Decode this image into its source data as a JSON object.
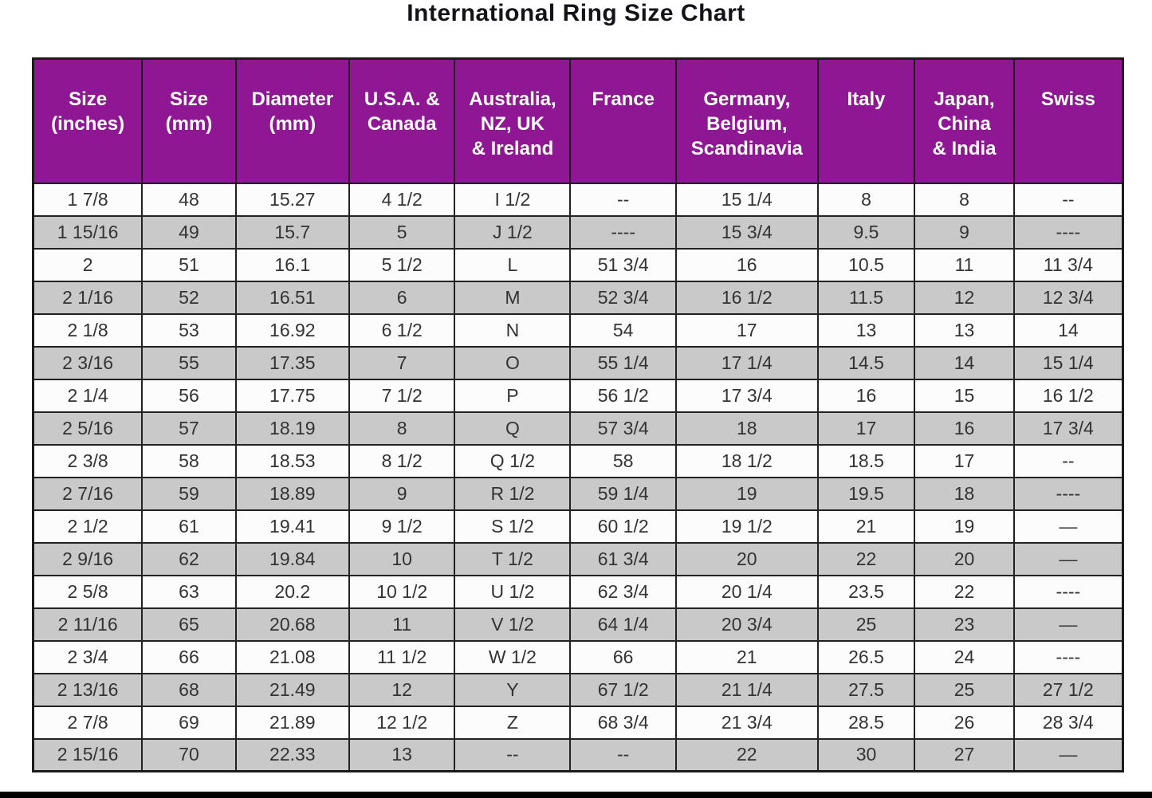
{
  "title": "International Ring Size Chart",
  "colors": {
    "header_bg": "#8f1793",
    "header_text": "#ffffff",
    "row_white": "#fcfcfc",
    "row_gray": "#c9c9c9",
    "border": "#1b1b1b",
    "cell_text": "#333333",
    "bottom_bar": "#000000"
  },
  "chart_data": {
    "type": "table",
    "title": "International Ring Size Chart",
    "grid": "on",
    "striped": true,
    "columns": [
      {
        "key": "size_inches",
        "label": "Size\n(inches)",
        "width": "10%"
      },
      {
        "key": "size_mm",
        "label": "Size\n(mm)",
        "width": "8.6%"
      },
      {
        "key": "diameter_mm",
        "label": "Diameter\n(mm)",
        "width": "10.4%"
      },
      {
        "key": "usa_canada",
        "label": "U.S.A. &\nCanada",
        "width": "9.7%"
      },
      {
        "key": "australia_nz_uk_ireland",
        "label": "Australia,\nNZ, UK\n& Ireland",
        "width": "10.6%"
      },
      {
        "key": "france",
        "label": "France",
        "width": "9.7%"
      },
      {
        "key": "germany_belgium_scandinavia",
        "label": "Germany,\nBelgium,\nScandinavia",
        "width": "13%"
      },
      {
        "key": "italy",
        "label": "Italy",
        "width": "8.9%"
      },
      {
        "key": "japan_china_india",
        "label": "Japan,\nChina\n& India",
        "width": "9.1%"
      },
      {
        "key": "swiss",
        "label": "Swiss",
        "width": "10%"
      }
    ],
    "rows": [
      [
        "1 7/8",
        "48",
        "15.27",
        "4 1/2",
        "I 1/2",
        "--",
        "15 1/4",
        "8",
        "8",
        "--"
      ],
      [
        "1 15/16",
        "49",
        "15.7",
        "5",
        "J 1/2",
        "----",
        "15 3/4",
        "9.5",
        "9",
        "----"
      ],
      [
        "2",
        "51",
        "16.1",
        "5 1/2",
        "L",
        "51 3/4",
        "16",
        "10.5",
        "11",
        "11 3/4"
      ],
      [
        "2 1/16",
        "52",
        "16.51",
        "6",
        "M",
        "52 3/4",
        "16 1/2",
        "11.5",
        "12",
        "12 3/4"
      ],
      [
        "2 1/8",
        "53",
        "16.92",
        "6 1/2",
        "N",
        "54",
        "17",
        "13",
        "13",
        "14"
      ],
      [
        "2 3/16",
        "55",
        "17.35",
        "7",
        "O",
        "55 1/4",
        "17 1/4",
        "14.5",
        "14",
        "15 1/4"
      ],
      [
        "2 1/4",
        "56",
        "17.75",
        "7 1/2",
        "P",
        "56 1/2",
        "17 3/4",
        "16",
        "15",
        "16 1/2"
      ],
      [
        "2 5/16",
        "57",
        "18.19",
        "8",
        "Q",
        "57 3/4",
        "18",
        "17",
        "16",
        "17 3/4"
      ],
      [
        "2 3/8",
        "58",
        "18.53",
        "8 1/2",
        "Q 1/2",
        "58",
        "18 1/2",
        "18.5",
        "17",
        "--"
      ],
      [
        "2 7/16",
        "59",
        "18.89",
        "9",
        "R 1/2",
        "59 1/4",
        "19",
        "19.5",
        "18",
        "----"
      ],
      [
        "2 1/2",
        "61",
        "19.41",
        "9 1/2",
        "S 1/2",
        "60 1/2",
        "19 1/2",
        "21",
        "19",
        "—"
      ],
      [
        "2 9/16",
        "62",
        "19.84",
        "10",
        "T 1/2",
        "61 3/4",
        "20",
        "22",
        "20",
        "—"
      ],
      [
        "2 5/8",
        "63",
        "20.2",
        "10 1/2",
        "U 1/2",
        "62 3/4",
        "20 1/4",
        "23.5",
        "22",
        "----"
      ],
      [
        "2 11/16",
        "65",
        "20.68",
        "11",
        "V 1/2",
        "64 1/4",
        "20 3/4",
        "25",
        "23",
        "—"
      ],
      [
        "2 3/4",
        "66",
        "21.08",
        "11 1/2",
        "W 1/2",
        "66",
        "21",
        "26.5",
        "24",
        "----"
      ],
      [
        "2 13/16",
        "68",
        "21.49",
        "12",
        "Y",
        "67 1/2",
        "21 1/4",
        "27.5",
        "25",
        "27 1/2"
      ],
      [
        "2 7/8",
        "69",
        "21.89",
        "12 1/2",
        "Z",
        "68 3/4",
        "21 3/4",
        "28.5",
        "26",
        "28 3/4"
      ],
      [
        "2 15/16",
        "70",
        "22.33",
        "13",
        "--",
        "--",
        "22",
        "30",
        "27",
        "—"
      ]
    ]
  }
}
